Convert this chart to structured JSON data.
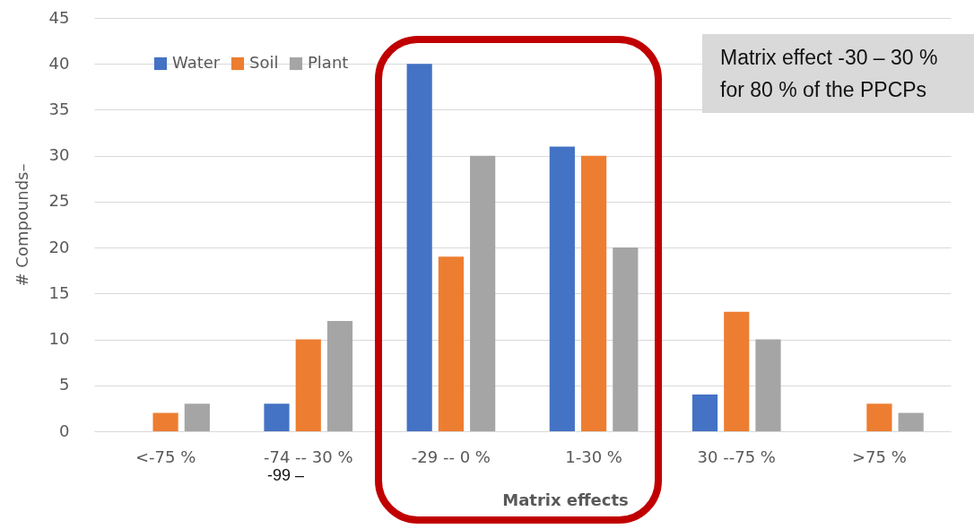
{
  "chart_data": {
    "type": "bar",
    "xlabel": "Matrix effects",
    "ylabel": "# Compounds–",
    "categories": [
      "<-75 %",
      "-74 -- 30 %",
      "-29 -- 0 %",
      "1-30 %",
      "30 --75 %",
      ">75 %"
    ],
    "series": [
      {
        "name": "Water",
        "color": "#4472c4",
        "values": [
          0,
          3,
          40,
          31,
          4,
          0
        ]
      },
      {
        "name": "Soil",
        "color": "#ed7d31",
        "values": [
          2,
          10,
          19,
          30,
          13,
          3
        ]
      },
      {
        "name": "Plant",
        "color": "#a5a5a5",
        "values": [
          3,
          12,
          30,
          20,
          10,
          2
        ]
      }
    ],
    "ylim": [
      0,
      45
    ],
    "yticks": [
      0,
      5,
      10,
      15,
      20,
      25,
      30,
      35,
      40,
      45
    ],
    "grid": "y",
    "legend": "top left",
    "annotations": [
      "Matrix effect -30 – 30 % for 80 % of the PPCPs",
      "-99 –"
    ]
  }
}
